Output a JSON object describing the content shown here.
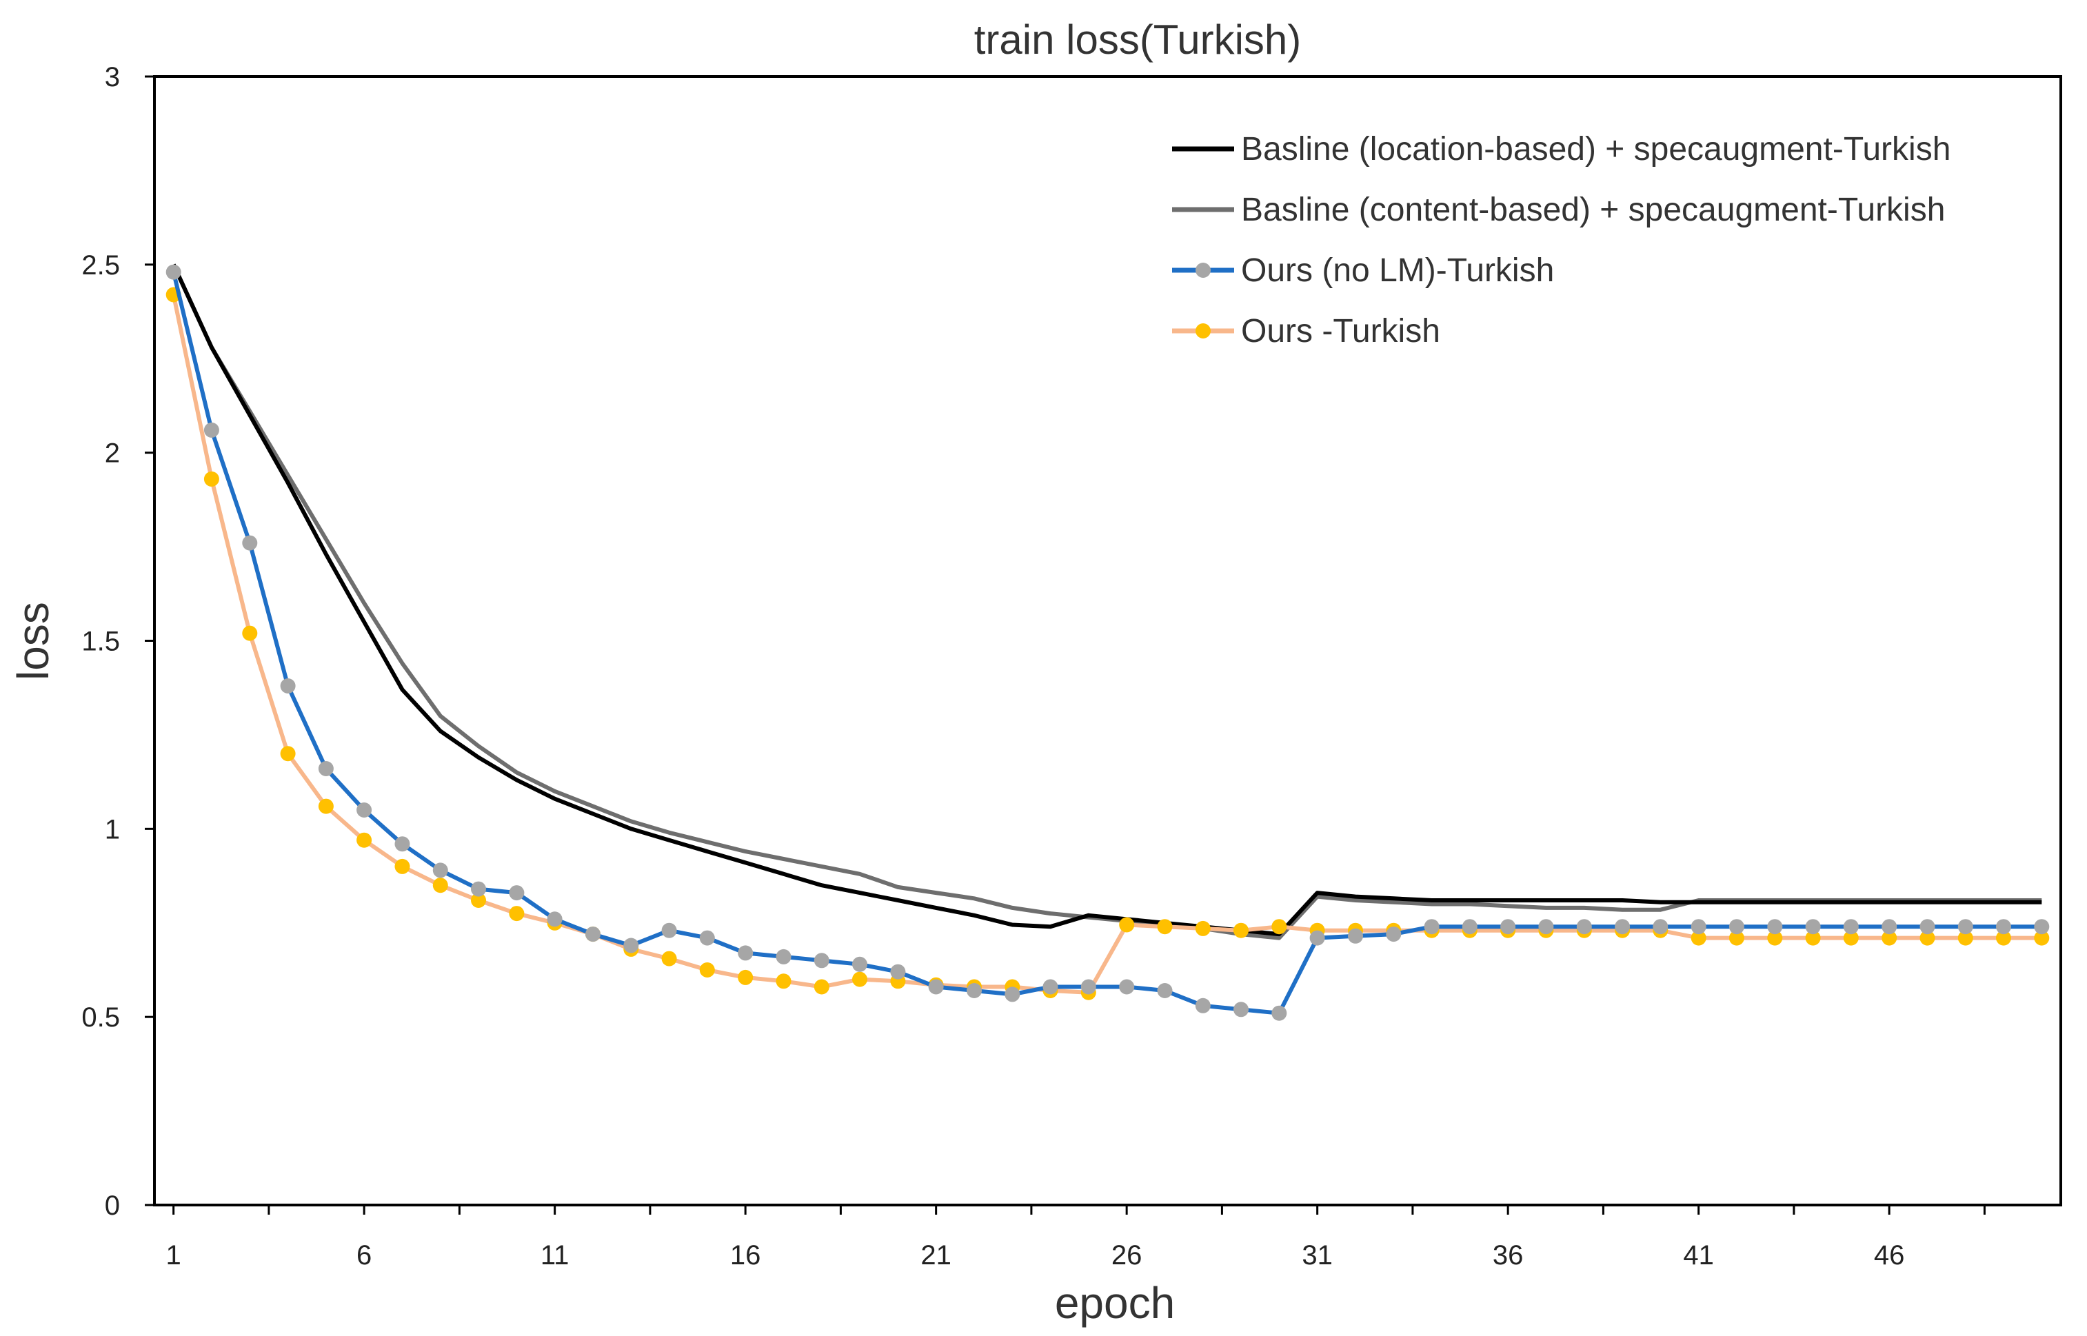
{
  "chart_data": {
    "type": "line",
    "title": "train loss(Turkish)",
    "xlabel": "epoch",
    "ylabel": "loss",
    "xlim": [
      0.5,
      50.5
    ],
    "ylim": [
      0,
      3
    ],
    "x_ticks": [
      1,
      6,
      11,
      16,
      21,
      26,
      31,
      36,
      41,
      46
    ],
    "y_ticks": [
      0,
      0.5,
      1,
      1.5,
      2,
      2.5,
      3
    ],
    "y_tick_labels": [
      "0",
      "0.5",
      "1",
      "1.5",
      "2",
      "2.5",
      "3"
    ],
    "legend_position": "top-right",
    "grid": false,
    "series": [
      {
        "name": "Basline (location-based) + specaugment-Turkish",
        "color": "#000000",
        "markers": false,
        "x": [
          1,
          2,
          3,
          4,
          5,
          6,
          7,
          8,
          9,
          10,
          11,
          12,
          13,
          14,
          15,
          16,
          17,
          18,
          19,
          20,
          21,
          22,
          23,
          24,
          25,
          26,
          27,
          28,
          29,
          30,
          31,
          32,
          33,
          34,
          35,
          36,
          37,
          38,
          39,
          40,
          41,
          42,
          43,
          44,
          45,
          46,
          47,
          48,
          49,
          50
        ],
        "values": [
          2.5,
          2.28,
          2.1,
          1.92,
          1.73,
          1.55,
          1.37,
          1.26,
          1.19,
          1.13,
          1.08,
          1.04,
          1.0,
          0.97,
          0.94,
          0.91,
          0.88,
          0.85,
          0.83,
          0.81,
          0.79,
          0.77,
          0.745,
          0.74,
          0.77,
          0.76,
          0.75,
          0.74,
          0.73,
          0.72,
          0.83,
          0.82,
          0.815,
          0.81,
          0.81,
          0.81,
          0.81,
          0.81,
          0.81,
          0.805,
          0.805,
          0.805,
          0.805,
          0.805,
          0.805,
          0.805,
          0.805,
          0.805,
          0.805,
          0.805
        ]
      },
      {
        "name": "Basline (content-based) + specaugment-Turkish",
        "color": "#6e6e6e",
        "markers": false,
        "x": [
          1,
          2,
          3,
          4,
          5,
          6,
          7,
          8,
          9,
          10,
          11,
          12,
          13,
          14,
          15,
          16,
          17,
          18,
          19,
          20,
          21,
          22,
          23,
          24,
          25,
          26,
          27,
          28,
          29,
          30,
          31,
          32,
          33,
          34,
          35,
          36,
          37,
          38,
          39,
          40,
          41,
          42,
          43,
          44,
          45,
          46,
          47,
          48,
          49,
          50
        ],
        "values": [
          2.5,
          2.28,
          2.11,
          1.94,
          1.77,
          1.6,
          1.44,
          1.3,
          1.22,
          1.15,
          1.1,
          1.06,
          1.02,
          0.99,
          0.965,
          0.94,
          0.92,
          0.9,
          0.88,
          0.845,
          0.83,
          0.815,
          0.79,
          0.775,
          0.765,
          0.755,
          0.745,
          0.735,
          0.72,
          0.71,
          0.82,
          0.81,
          0.805,
          0.8,
          0.8,
          0.795,
          0.79,
          0.79,
          0.785,
          0.785,
          0.81,
          0.81,
          0.81,
          0.81,
          0.81,
          0.81,
          0.81,
          0.81,
          0.81,
          0.81
        ]
      },
      {
        "name": "Ours (no LM)-Turkish",
        "color": "#1f6fc6",
        "marker_color": "#a6a6a6",
        "markers": true,
        "x": [
          1,
          2,
          3,
          4,
          5,
          6,
          7,
          8,
          9,
          10,
          11,
          12,
          13,
          14,
          15,
          16,
          17,
          18,
          19,
          20,
          21,
          22,
          23,
          24,
          25,
          26,
          27,
          28,
          29,
          30,
          31,
          32,
          33,
          34,
          35,
          36,
          37,
          38,
          39,
          40,
          41,
          42,
          43,
          44,
          45,
          46,
          47,
          48,
          49,
          50
        ],
        "values": [
          2.48,
          2.06,
          1.76,
          1.38,
          1.16,
          1.05,
          0.96,
          0.89,
          0.84,
          0.83,
          0.76,
          0.72,
          0.69,
          0.73,
          0.71,
          0.67,
          0.66,
          0.65,
          0.64,
          0.62,
          0.58,
          0.57,
          0.56,
          0.58,
          0.58,
          0.58,
          0.57,
          0.53,
          0.52,
          0.51,
          0.71,
          0.715,
          0.72,
          0.74,
          0.74,
          0.74,
          0.74,
          0.74,
          0.74,
          0.74,
          0.74,
          0.74,
          0.74,
          0.74,
          0.74,
          0.74,
          0.74,
          0.74,
          0.74,
          0.74
        ]
      },
      {
        "name": "Ours -Turkish",
        "color": "#f8b78b",
        "marker_color": "#ffc000",
        "markers": true,
        "x": [
          1,
          2,
          3,
          4,
          5,
          6,
          7,
          8,
          9,
          10,
          11,
          12,
          13,
          14,
          15,
          16,
          17,
          18,
          19,
          20,
          21,
          22,
          23,
          24,
          25,
          26,
          27,
          28,
          29,
          30,
          31,
          32,
          33,
          34,
          35,
          36,
          37,
          38,
          39,
          40,
          41,
          42,
          43,
          44,
          45,
          46,
          47,
          48,
          49,
          50
        ],
        "values": [
          2.42,
          1.93,
          1.52,
          1.2,
          1.06,
          0.97,
          0.9,
          0.85,
          0.81,
          0.775,
          0.75,
          0.72,
          0.68,
          0.655,
          0.625,
          0.605,
          0.595,
          0.58,
          0.6,
          0.595,
          0.585,
          0.58,
          0.58,
          0.57,
          0.565,
          0.745,
          0.74,
          0.735,
          0.73,
          0.74,
          0.73,
          0.73,
          0.73,
          0.73,
          0.73,
          0.73,
          0.73,
          0.73,
          0.73,
          0.73,
          0.71,
          0.71,
          0.71,
          0.71,
          0.71,
          0.71,
          0.71,
          0.71,
          0.71,
          0.71
        ]
      }
    ]
  }
}
